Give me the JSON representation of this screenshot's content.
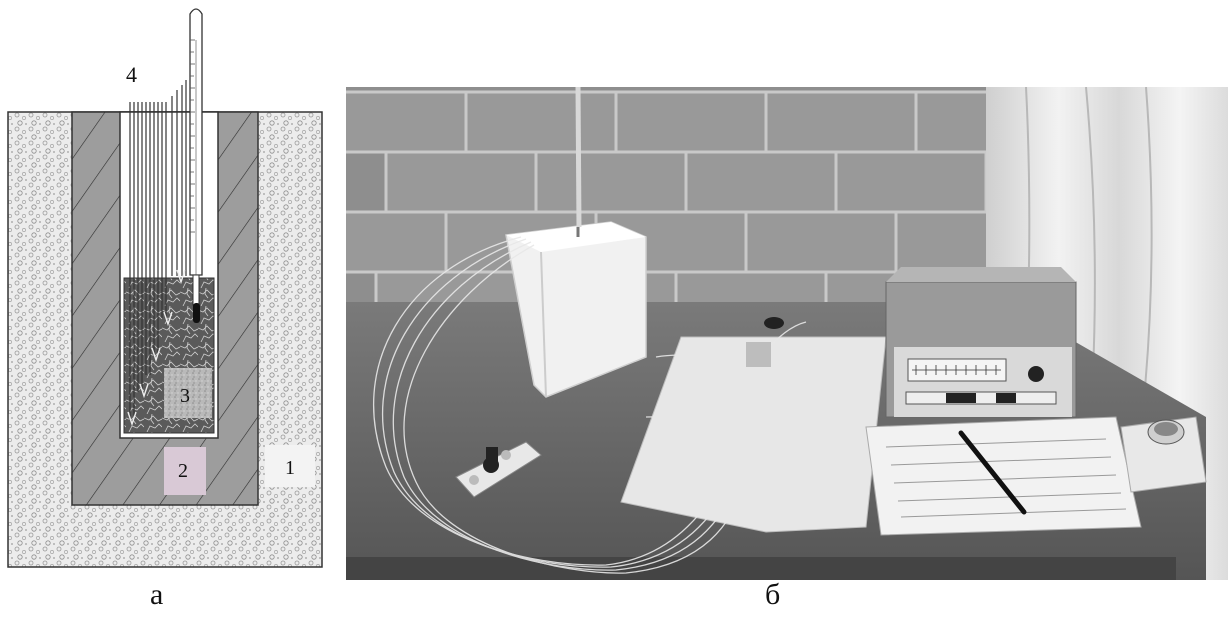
{
  "figure": {
    "panel_a": {
      "caption": "а",
      "labels": {
        "outer_insulation": "1",
        "holder_wall": "2",
        "sample": "3",
        "thermocouples": "4"
      }
    },
    "panel_b": {
      "caption": "б"
    }
  },
  "colors": {
    "diagram_gray": "#9c9c9c",
    "speckle_bg": "#e6e6e6",
    "label_box_2": "#d9c9d6",
    "label_box_1": "#f2f2f2"
  }
}
